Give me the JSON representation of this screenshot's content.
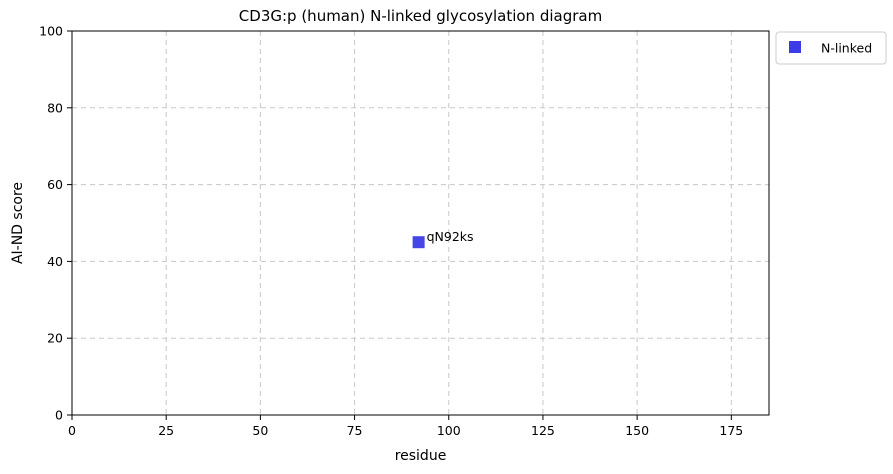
{
  "chart_data": {
    "type": "scatter",
    "title": "CD3G:p (human) N-linked glycosylation diagram",
    "xlabel": "residue",
    "ylabel": "AI-ND score",
    "xlim": [
      0,
      185
    ],
    "ylim": [
      0,
      100
    ],
    "xticks": [
      0,
      25,
      50,
      75,
      100,
      125,
      150,
      175
    ],
    "yticks": [
      0,
      20,
      40,
      60,
      80,
      100
    ],
    "grid": true,
    "legend_position": "outside-top-right",
    "series": [
      {
        "name": "N-linked",
        "color": "#3c3ce6",
        "marker": "square",
        "points": [
          {
            "x": 92,
            "y": 45,
            "label": "qN92ks"
          }
        ]
      }
    ]
  }
}
